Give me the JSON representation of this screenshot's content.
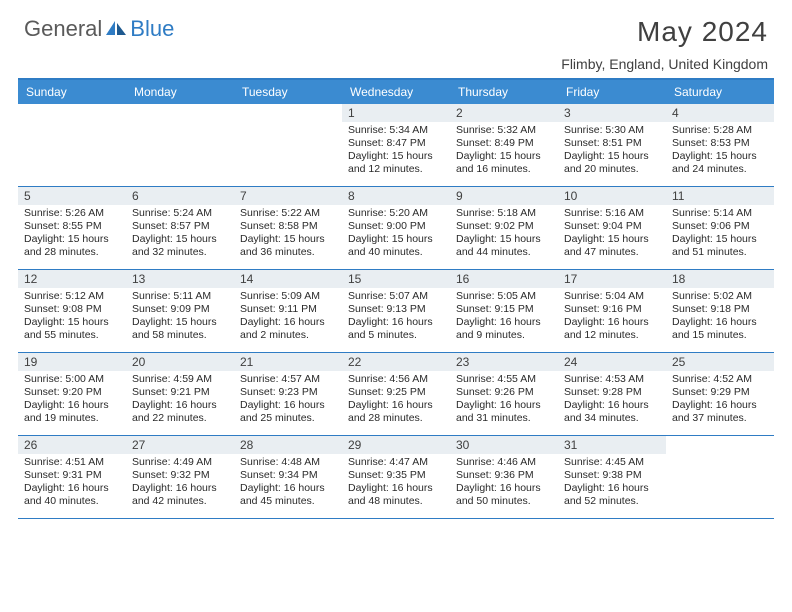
{
  "brand": {
    "part1": "General",
    "part2": "Blue"
  },
  "title": "May 2024",
  "location": "Flimby, England, United Kingdom",
  "colors": {
    "header_bg": "#3b8bd1",
    "header_border": "#2f7cc4",
    "daynum_bg": "#e9eef2",
    "text": "#2a2a2a",
    "logo_gray": "#5a5a5a",
    "logo_blue": "#2f7cc4"
  },
  "columns": [
    "Sunday",
    "Monday",
    "Tuesday",
    "Wednesday",
    "Thursday",
    "Friday",
    "Saturday"
  ],
  "weeks": [
    [
      null,
      null,
      null,
      {
        "n": "1",
        "sr": "5:34 AM",
        "ss": "8:47 PM",
        "dl": "15 hours and 12 minutes."
      },
      {
        "n": "2",
        "sr": "5:32 AM",
        "ss": "8:49 PM",
        "dl": "15 hours and 16 minutes."
      },
      {
        "n": "3",
        "sr": "5:30 AM",
        "ss": "8:51 PM",
        "dl": "15 hours and 20 minutes."
      },
      {
        "n": "4",
        "sr": "5:28 AM",
        "ss": "8:53 PM",
        "dl": "15 hours and 24 minutes."
      }
    ],
    [
      {
        "n": "5",
        "sr": "5:26 AM",
        "ss": "8:55 PM",
        "dl": "15 hours and 28 minutes."
      },
      {
        "n": "6",
        "sr": "5:24 AM",
        "ss": "8:57 PM",
        "dl": "15 hours and 32 minutes."
      },
      {
        "n": "7",
        "sr": "5:22 AM",
        "ss": "8:58 PM",
        "dl": "15 hours and 36 minutes."
      },
      {
        "n": "8",
        "sr": "5:20 AM",
        "ss": "9:00 PM",
        "dl": "15 hours and 40 minutes."
      },
      {
        "n": "9",
        "sr": "5:18 AM",
        "ss": "9:02 PM",
        "dl": "15 hours and 44 minutes."
      },
      {
        "n": "10",
        "sr": "5:16 AM",
        "ss": "9:04 PM",
        "dl": "15 hours and 47 minutes."
      },
      {
        "n": "11",
        "sr": "5:14 AM",
        "ss": "9:06 PM",
        "dl": "15 hours and 51 minutes."
      }
    ],
    [
      {
        "n": "12",
        "sr": "5:12 AM",
        "ss": "9:08 PM",
        "dl": "15 hours and 55 minutes."
      },
      {
        "n": "13",
        "sr": "5:11 AM",
        "ss": "9:09 PM",
        "dl": "15 hours and 58 minutes."
      },
      {
        "n": "14",
        "sr": "5:09 AM",
        "ss": "9:11 PM",
        "dl": "16 hours and 2 minutes."
      },
      {
        "n": "15",
        "sr": "5:07 AM",
        "ss": "9:13 PM",
        "dl": "16 hours and 5 minutes."
      },
      {
        "n": "16",
        "sr": "5:05 AM",
        "ss": "9:15 PM",
        "dl": "16 hours and 9 minutes."
      },
      {
        "n": "17",
        "sr": "5:04 AM",
        "ss": "9:16 PM",
        "dl": "16 hours and 12 minutes."
      },
      {
        "n": "18",
        "sr": "5:02 AM",
        "ss": "9:18 PM",
        "dl": "16 hours and 15 minutes."
      }
    ],
    [
      {
        "n": "19",
        "sr": "5:00 AM",
        "ss": "9:20 PM",
        "dl": "16 hours and 19 minutes."
      },
      {
        "n": "20",
        "sr": "4:59 AM",
        "ss": "9:21 PM",
        "dl": "16 hours and 22 minutes."
      },
      {
        "n": "21",
        "sr": "4:57 AM",
        "ss": "9:23 PM",
        "dl": "16 hours and 25 minutes."
      },
      {
        "n": "22",
        "sr": "4:56 AM",
        "ss": "9:25 PM",
        "dl": "16 hours and 28 minutes."
      },
      {
        "n": "23",
        "sr": "4:55 AM",
        "ss": "9:26 PM",
        "dl": "16 hours and 31 minutes."
      },
      {
        "n": "24",
        "sr": "4:53 AM",
        "ss": "9:28 PM",
        "dl": "16 hours and 34 minutes."
      },
      {
        "n": "25",
        "sr": "4:52 AM",
        "ss": "9:29 PM",
        "dl": "16 hours and 37 minutes."
      }
    ],
    [
      {
        "n": "26",
        "sr": "4:51 AM",
        "ss": "9:31 PM",
        "dl": "16 hours and 40 minutes."
      },
      {
        "n": "27",
        "sr": "4:49 AM",
        "ss": "9:32 PM",
        "dl": "16 hours and 42 minutes."
      },
      {
        "n": "28",
        "sr": "4:48 AM",
        "ss": "9:34 PM",
        "dl": "16 hours and 45 minutes."
      },
      {
        "n": "29",
        "sr": "4:47 AM",
        "ss": "9:35 PM",
        "dl": "16 hours and 48 minutes."
      },
      {
        "n": "30",
        "sr": "4:46 AM",
        "ss": "9:36 PM",
        "dl": "16 hours and 50 minutes."
      },
      {
        "n": "31",
        "sr": "4:45 AM",
        "ss": "9:38 PM",
        "dl": "16 hours and 52 minutes."
      },
      null
    ]
  ],
  "labels": {
    "sunrise": "Sunrise:",
    "sunset": "Sunset:",
    "daylight": "Daylight:"
  }
}
